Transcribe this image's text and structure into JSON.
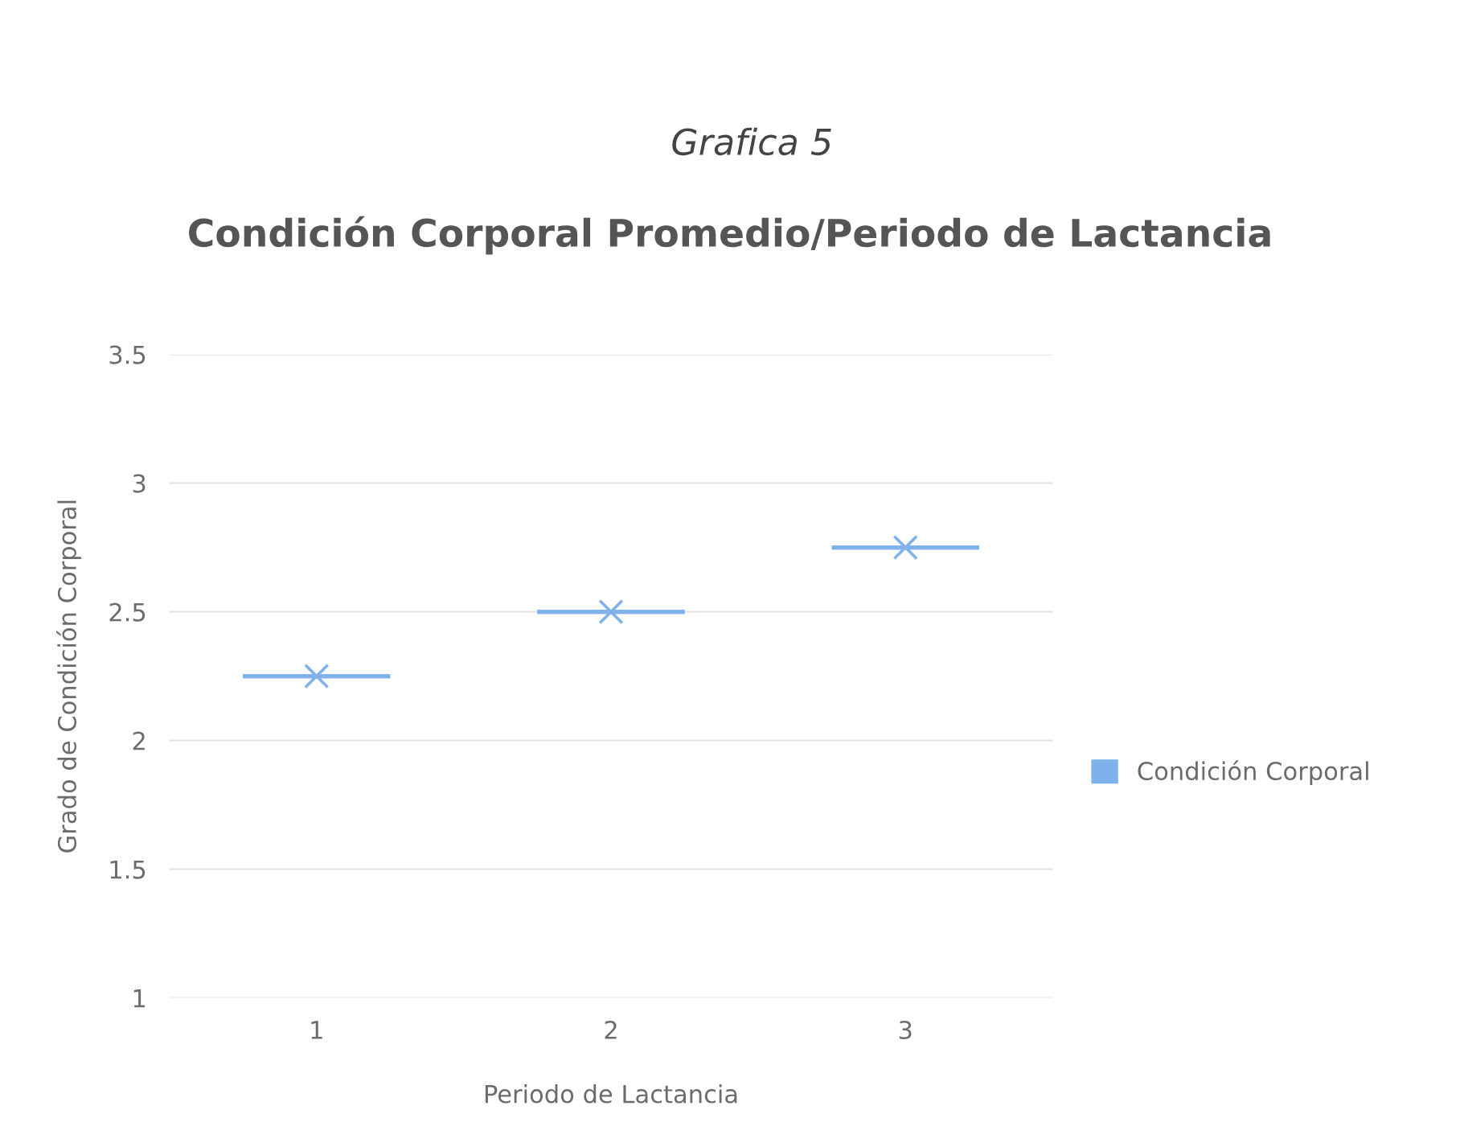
{
  "chart_data": {
    "type": "box",
    "title": "Condición Corporal Promedio/Periodo de Lactancia",
    "annotations": [
      "Grafica 5"
    ],
    "xlabel": "Periodo de Lactancia",
    "ylabel": "Grado de Condición Corporal",
    "categories": [
      "1",
      "2",
      "3"
    ],
    "series": [
      {
        "name": "Condición Corporal",
        "color": "#7fb2ea",
        "boxes": [
          {
            "low": 2.25,
            "q1": 2.25,
            "median": 2.25,
            "q3": 2.25,
            "high": 2.25,
            "mean": 2.25
          },
          {
            "low": 2.5,
            "q1": 2.5,
            "median": 2.5,
            "q3": 2.5,
            "high": 2.5,
            "mean": 2.5
          },
          {
            "low": 2.75,
            "q1": 2.75,
            "median": 2.75,
            "q3": 2.75,
            "high": 2.75,
            "mean": 2.75
          }
        ]
      }
    ],
    "ylim": [
      1,
      3.5
    ],
    "yticks": [
      1,
      1.5,
      2,
      2.5,
      3,
      3.5
    ],
    "grid": "y",
    "legend": "right",
    "marker": "cross"
  }
}
